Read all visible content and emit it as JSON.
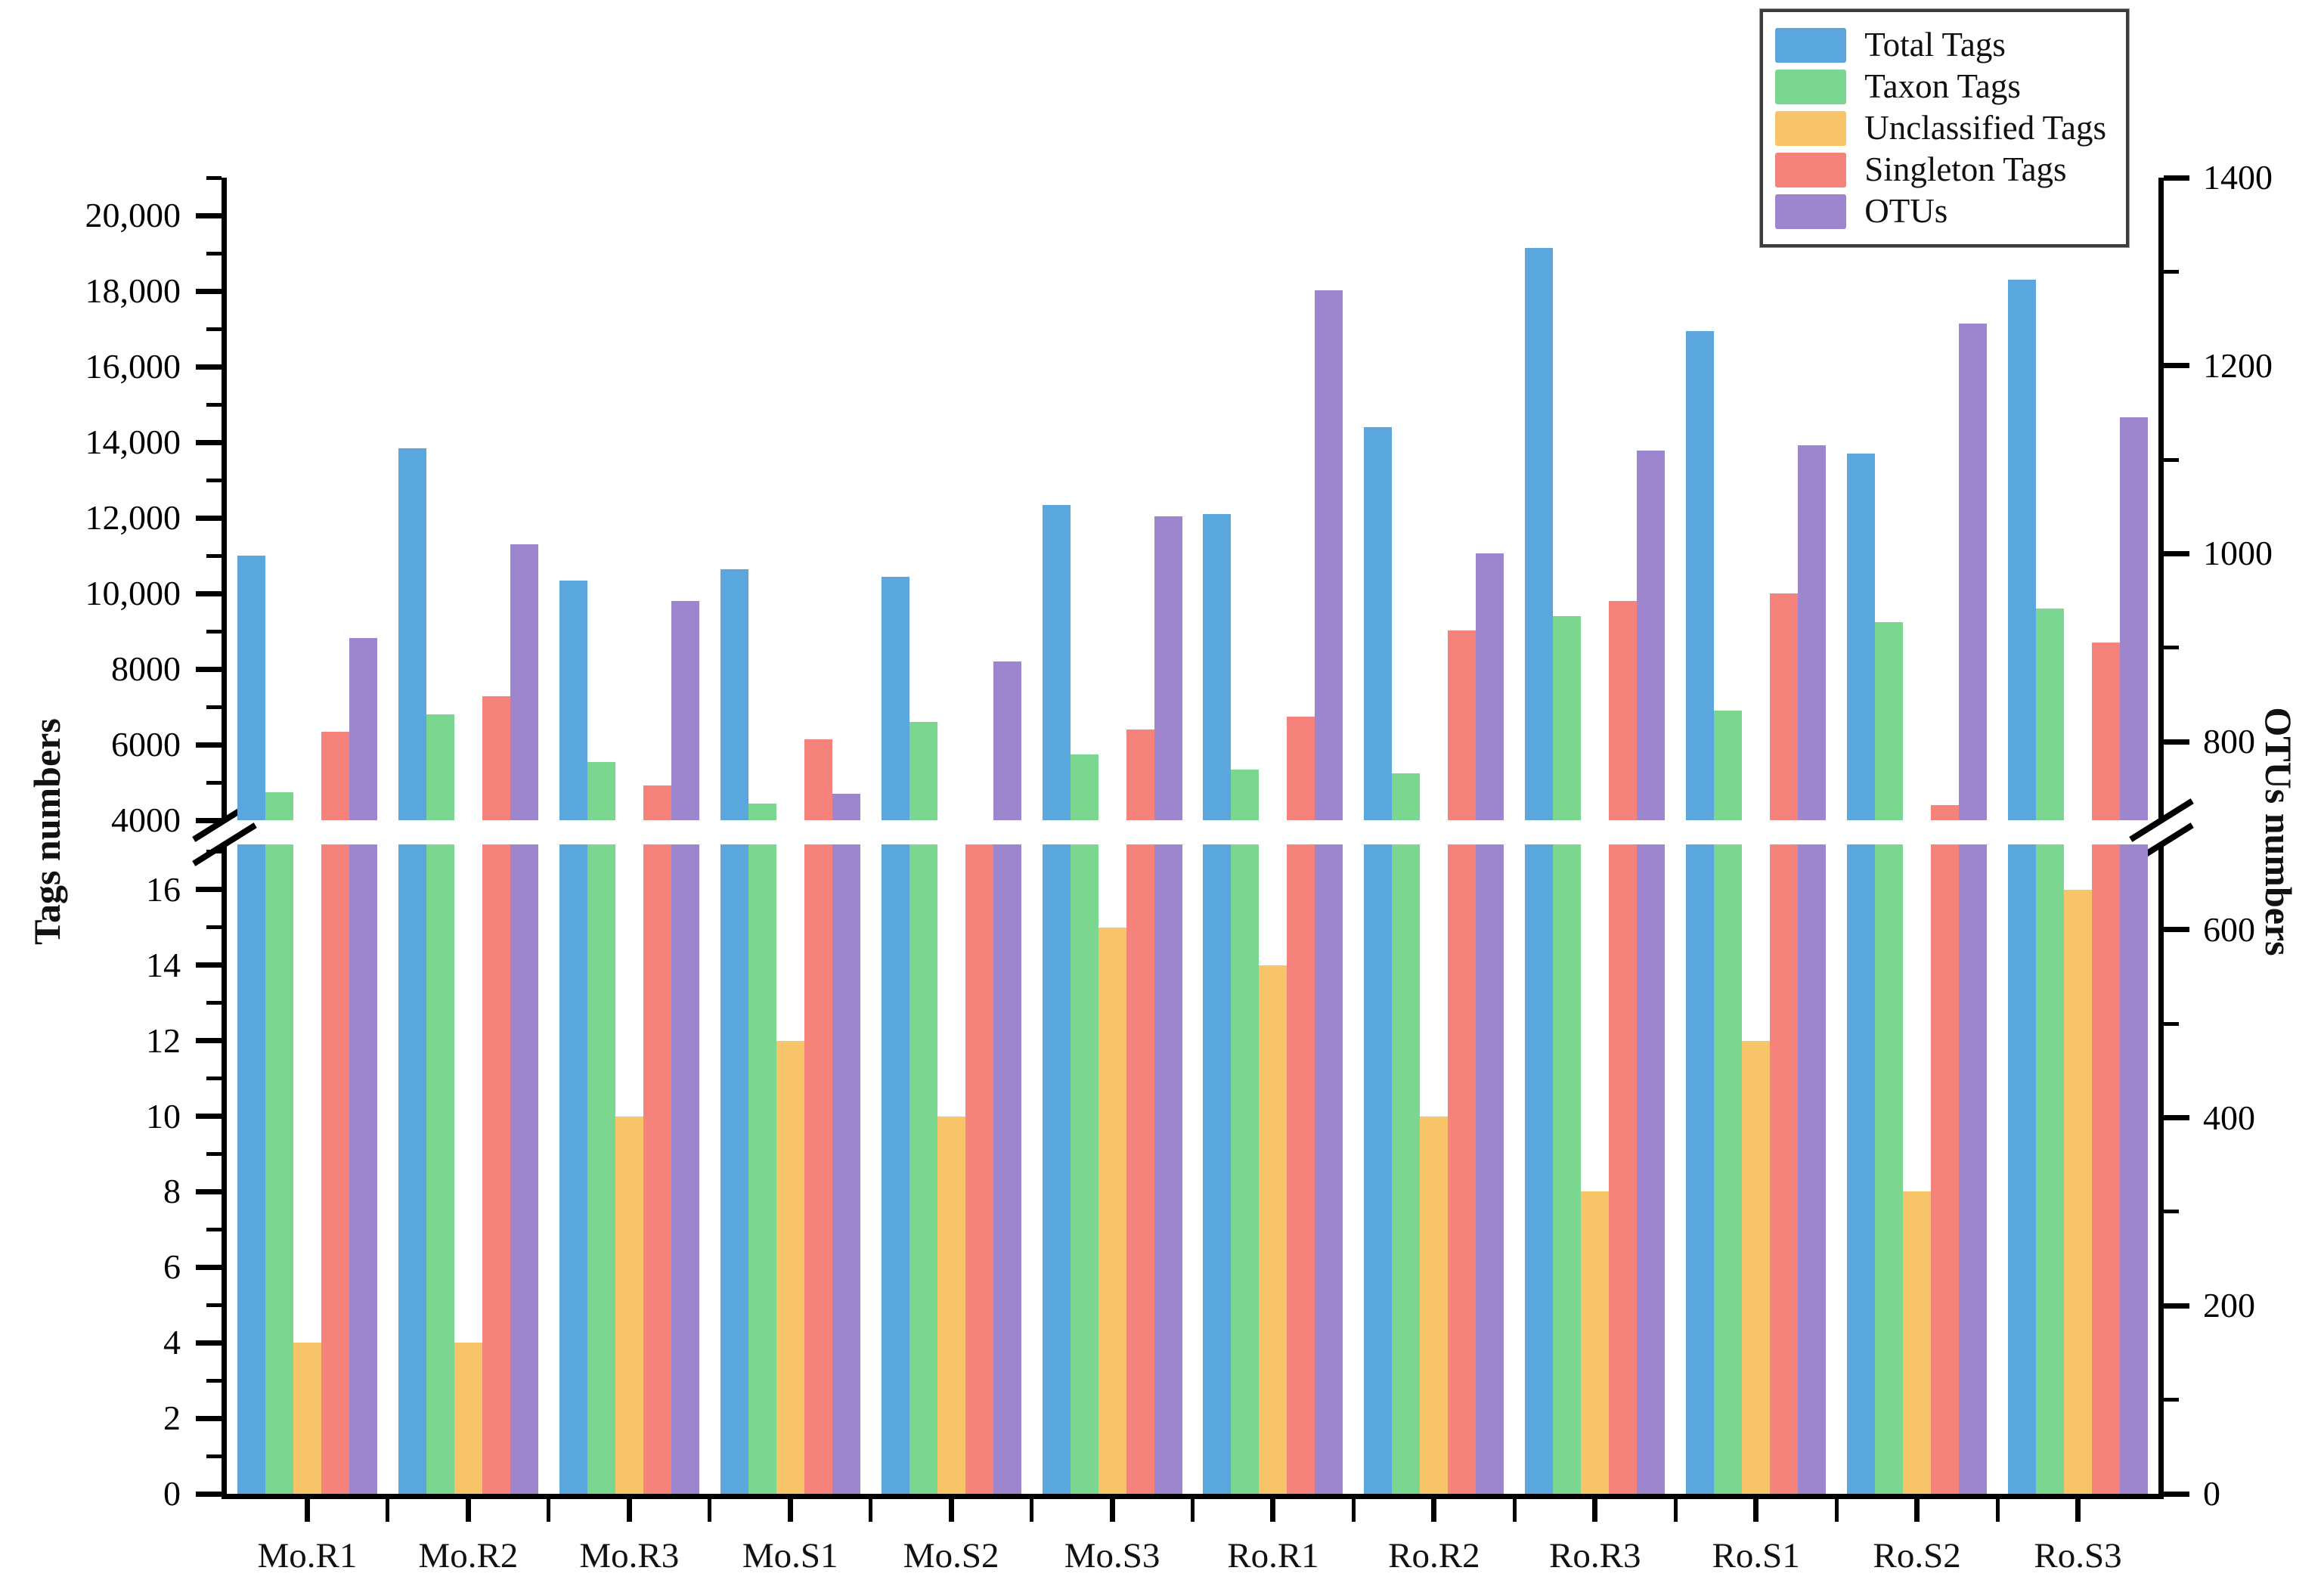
{
  "figure_title": "",
  "legend": {
    "position": "top-right",
    "items": [
      {
        "label": "Total Tags",
        "color": "#5AA7DE"
      },
      {
        "label": "Taxon Tags",
        "color": "#7BD78F"
      },
      {
        "label": "Unclassified Tags",
        "color": "#F7C469"
      },
      {
        "label": "Singleton Tags",
        "color": "#F5837B"
      },
      {
        "label": "OTUs",
        "color": "#9D86CE"
      }
    ]
  },
  "chart_data": {
    "type": "bar",
    "title": "",
    "categories": [
      "Mo.R1",
      "Mo.R2",
      "Mo.R3",
      "Mo.S1",
      "Mo.S2",
      "Mo.S3",
      "Ro.R1",
      "Ro.R2",
      "Ro.R3",
      "Ro.S1",
      "Ro.S2",
      "Ro.S3"
    ],
    "series": [
      {
        "name": "Total Tags",
        "axis": "left",
        "color": "#5AA7DE",
        "values": [
          11000,
          13850,
          10350,
          10650,
          10450,
          12350,
          12100,
          14400,
          19150,
          16950,
          13700,
          18300
        ]
      },
      {
        "name": "Taxon Tags",
        "axis": "left",
        "color": "#7BD78F",
        "values": [
          4750,
          6800,
          5550,
          4450,
          6600,
          5750,
          5350,
          5250,
          9400,
          6900,
          9250,
          9600
        ]
      },
      {
        "name": "Unclassified Tags",
        "axis": "left",
        "color": "#F7C469",
        "values": [
          4,
          4,
          10,
          12,
          10,
          15,
          14,
          10,
          8,
          12,
          8,
          16
        ]
      },
      {
        "name": "Singleton Tags",
        "axis": "left",
        "color": "#F5837B",
        "values": [
          6350,
          7280,
          4920,
          6150,
          3800,
          6400,
          6750,
          9030,
          9800,
          10000,
          4400,
          8700
        ]
      },
      {
        "name": "OTUs",
        "axis": "right",
        "color": "#9D86CE",
        "values": [
          910,
          1010,
          950,
          745,
          885,
          1040,
          1280,
          1000,
          1110,
          1115,
          1245,
          1145
        ]
      }
    ],
    "left_axis": {
      "title": "Tags numbers",
      "broken": true,
      "break_between": [
        16,
        4000
      ],
      "upper": {
        "min": 4000,
        "max": 21000,
        "tick_step": 2000,
        "minor_step": 1000,
        "tick_labels": [
          "4000",
          "6000",
          "8000",
          "10,000",
          "12,000",
          "14,000",
          "16,000",
          "18,000",
          "20,000"
        ]
      },
      "lower": {
        "min": 0,
        "max": 17.2,
        "tick_step": 2,
        "minor_step": 1,
        "tick_labels": [
          "0",
          "2",
          "4",
          "6",
          "8",
          "10",
          "12",
          "14",
          "16"
        ]
      }
    },
    "right_axis": {
      "title": "OTUs numbers",
      "min": 0,
      "max": 1400,
      "tick_step": 200,
      "minor_step": 100,
      "tick_labels": [
        "0",
        "200",
        "400",
        "600",
        "800",
        "1000",
        "1200",
        "1400"
      ]
    },
    "grid": false,
    "legend_position": "top-right"
  }
}
